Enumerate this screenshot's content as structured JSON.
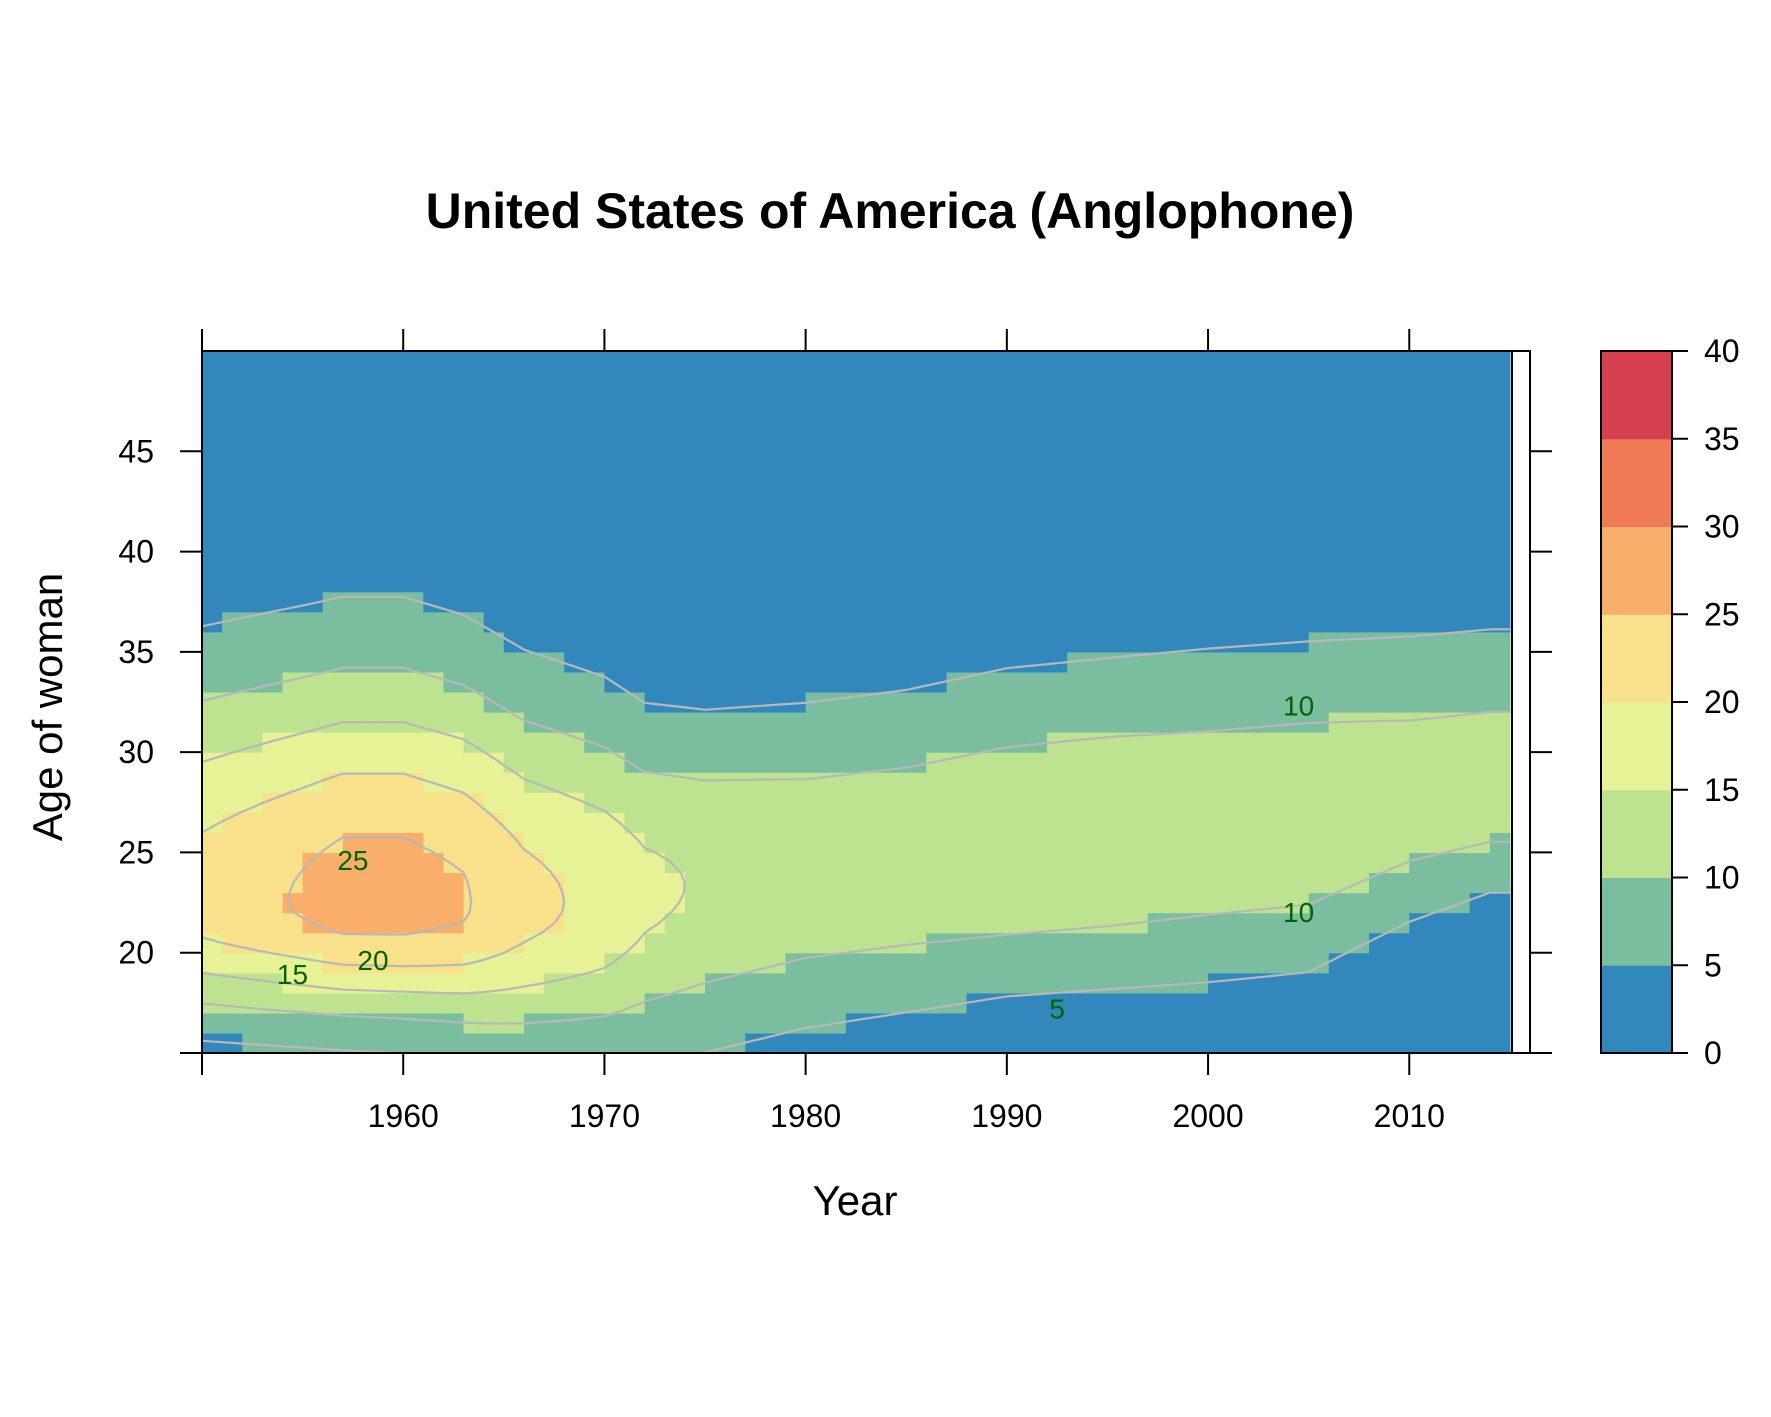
{
  "chart_data": {
    "type": "heatmap",
    "title": "United States of America (Anglophone)",
    "xlabel": "Year",
    "ylabel": "Age of woman",
    "xlim": [
      1950,
      2016
    ],
    "ylim": [
      15,
      50
    ],
    "x_ticks": [
      1960,
      1970,
      1980,
      1990,
      2000,
      2010
    ],
    "y_ticks": [
      20,
      25,
      30,
      35,
      40,
      45
    ],
    "colorbar": {
      "breaks": [
        0,
        5,
        10,
        15,
        20,
        25,
        30,
        35,
        40
      ],
      "tick_labels": [
        "0",
        "5",
        "10",
        "15",
        "20",
        "25",
        "30",
        "35",
        "40"
      ],
      "colors": [
        "#3288bd",
        "#7bbe9f",
        "#bde390",
        "#e7f196",
        "#f9e08a",
        "#f9ae6a",
        "#f07a56",
        "#d53f50"
      ]
    },
    "contour_levels": [
      5,
      10,
      15,
      20,
      25
    ],
    "contour_labels": [
      {
        "text": "25",
        "x": 1957.5,
        "y": 24.5
      },
      {
        "text": "20",
        "x": 1958.5,
        "y": 19.5
      },
      {
        "text": "15",
        "x": 1954.5,
        "y": 18.8
      },
      {
        "text": "10",
        "x": 2004.5,
        "y": 32.2
      },
      {
        "text": "10",
        "x": 2004.5,
        "y": 21.9
      },
      {
        "text": "5",
        "x": 1992.5,
        "y": 17.1
      }
    ],
    "series_profile": {
      "years": [
        1950,
        1955,
        1957,
        1960,
        1963,
        1966,
        1970,
        1972,
        1975,
        1980,
        1985,
        1990,
        1995,
        2000,
        2005,
        2010,
        2014
      ],
      "peak_age": [
        22.5,
        22.5,
        22.5,
        22.5,
        22.4,
        22.3,
        22.6,
        23.0,
        23.5,
        24.0,
        24.5,
        25.0,
        25.5,
        26.0,
        26.5,
        27.5,
        28.0
      ],
      "peak_rate": [
        22,
        25.5,
        27,
        27,
        25.5,
        21.5,
        18.5,
        16,
        14.5,
        13.5,
        13.5,
        14,
        14,
        13.5,
        13.5,
        12.5,
        12.5
      ],
      "sigma_young": [
        4.0,
        4.0,
        4.0,
        4.1,
        4.3,
        4.7,
        5.2,
        5.6,
        5.8,
        5.5,
        5.3,
        5.0,
        5.1,
        5.3,
        5.3,
        4.4,
        3.7
      ],
      "sigma_old": [
        8.0,
        8.2,
        8.3,
        8.3,
        8.0,
        7.5,
        6.9,
        6.2,
        5.9,
        6.0,
        6.1,
        6.4,
        6.4,
        6.5,
        6.4,
        6.1,
        6.0
      ]
    }
  }
}
